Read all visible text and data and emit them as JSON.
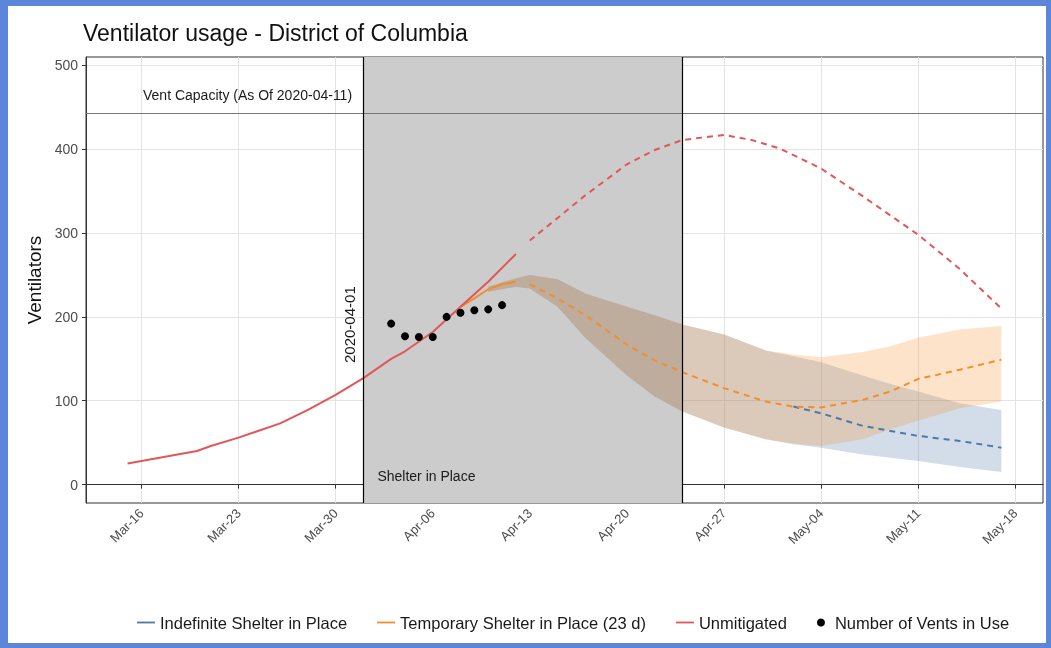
{
  "chart_data": {
    "type": "line",
    "title": "Ventilator usage - District of Columbia",
    "ylabel": "Ventilators",
    "xlim": [
      "2020-03-12",
      "2020-05-20"
    ],
    "xticks": [
      {
        "value": "2020-03-16",
        "label": "Mar-16"
      },
      {
        "value": "2020-03-23",
        "label": "Mar-23"
      },
      {
        "value": "2020-03-30",
        "label": "Mar-30"
      },
      {
        "value": "2020-04-06",
        "label": "Apr-06"
      },
      {
        "value": "2020-04-13",
        "label": "Apr-13"
      },
      {
        "value": "2020-04-20",
        "label": "Apr-20"
      },
      {
        "value": "2020-04-27",
        "label": "Apr-27"
      },
      {
        "value": "2020-05-04",
        "label": "May-04"
      },
      {
        "value": "2020-05-11",
        "label": "May-11"
      },
      {
        "value": "2020-05-18",
        "label": "May-18"
      }
    ],
    "ylim": [
      -22,
      510
    ],
    "yticks": [
      0,
      100,
      200,
      300,
      400,
      500
    ],
    "grid": true,
    "legend": "bottom",
    "series": [
      {
        "name": "Indefinite Shelter in Place",
        "color": "#4e79a7",
        "line_style": "dashed",
        "x": [
          "2020-04-10",
          "2020-04-12",
          "2020-04-13",
          "2020-04-15",
          "2020-04-17",
          "2020-04-20",
          "2020-04-22",
          "2020-04-24",
          "2020-04-27",
          "2020-04-30",
          "2020-05-02",
          "2020-05-04",
          "2020-05-07",
          "2020-05-09",
          "2020-05-11",
          "2020-05-14",
          "2020-05-17"
        ],
        "values": [
          null,
          null,
          null,
          null,
          null,
          null,
          null,
          null,
          null,
          null,
          93,
          85,
          70,
          64,
          58,
          52,
          44
        ],
        "lower": [
          230,
          236,
          234,
          212,
          175,
          130,
          105,
          87,
          68,
          54,
          48,
          44,
          36,
          32,
          28,
          21,
          15
        ],
        "upper": [
          236,
          246,
          250,
          245,
          228,
          212,
          202,
          191,
          179,
          160,
          153,
          146,
          130,
          120,
          111,
          97,
          89
        ]
      },
      {
        "name": "Temporary Shelter in Place (23 d)",
        "color": "#f28e2b",
        "line_style": "solid",
        "x": [
          "2020-04-08",
          "2020-04-09",
          "2020-04-10",
          "2020-04-11",
          "2020-04-12"
        ],
        "values": [
          212,
          222,
          233,
          239,
          242
        ]
      },
      {
        "color": "#f28e2b",
        "line_style": "dashed",
        "x": [
          "2020-04-10",
          "2020-04-12",
          "2020-04-13",
          "2020-04-15",
          "2020-04-17",
          "2020-04-20",
          "2020-04-22",
          "2020-04-24",
          "2020-04-27",
          "2020-04-30",
          "2020-05-02",
          "2020-05-04",
          "2020-05-07",
          "2020-05-09",
          "2020-05-11",
          "2020-05-14",
          "2020-05-17"
        ],
        "values": [
          null,
          null,
          239,
          222,
          202,
          167,
          148,
          134,
          115,
          99,
          93,
          92,
          101,
          111,
          126,
          137,
          149
        ],
        "lower": [
          230,
          236,
          234,
          212,
          175,
          130,
          105,
          87,
          68,
          54,
          49,
          46,
          54,
          66,
          76,
          91,
          99
        ],
        "upper": [
          236,
          246,
          250,
          245,
          228,
          212,
          202,
          191,
          179,
          160,
          155,
          152,
          158,
          165,
          175,
          185,
          189
        ]
      },
      {
        "name": "Unmitigated",
        "color": "#e15759",
        "line_style": "solid",
        "x": [
          "2020-03-15",
          "2020-03-16",
          "2020-03-18",
          "2020-03-20",
          "2020-03-21",
          "2020-03-23",
          "2020-03-26",
          "2020-03-28",
          "2020-03-30",
          "2020-04-01",
          "2020-04-03",
          "2020-04-04",
          "2020-04-06",
          "2020-04-08",
          "2020-04-10",
          "2020-04-12"
        ],
        "values": [
          25,
          28,
          34,
          40,
          46,
          56,
          73,
          89,
          107,
          127,
          150,
          159,
          182,
          212,
          242,
          275
        ]
      },
      {
        "color": "#e15759",
        "line_style": "dashed",
        "x": [
          "2020-04-13",
          "2020-04-15",
          "2020-04-17",
          "2020-04-20",
          "2020-04-22",
          "2020-04-24",
          "2020-04-27",
          "2020-04-29",
          "2020-05-01",
          "2020-05-04",
          "2020-05-07",
          "2020-05-11",
          "2020-05-14",
          "2020-05-17"
        ],
        "values": [
          291,
          318,
          345,
          382,
          399,
          411,
          417,
          411,
          401,
          377,
          344,
          298,
          257,
          210
        ]
      },
      {
        "name": "Number of Vents in Use",
        "type": "scatter",
        "marker": "circle",
        "color": "#000000",
        "x": [
          "2020-04-03",
          "2020-04-04",
          "2020-04-05",
          "2020-04-06",
          "2020-04-07",
          "2020-04-08",
          "2020-04-09",
          "2020-04-10",
          "2020-04-11"
        ],
        "values": [
          192,
          177,
          176,
          176,
          200,
          205,
          208,
          209,
          214
        ]
      }
    ],
    "ref_lines": [
      {
        "axis": "y",
        "value": 443,
        "label": "Vent Capacity (As Of 2020-04-11)",
        "color": "#777777"
      },
      {
        "axis": "x",
        "value": "2020-04-01",
        "label": "2020-04-01",
        "color": "#000000"
      },
      {
        "axis": "x",
        "value": "2020-04-24",
        "color": "#000000"
      }
    ],
    "bands": [
      {
        "axis": "x",
        "from": "2020-04-01",
        "to": "2020-04-24",
        "label": "Shelter in Place",
        "color": "#cccccc"
      }
    ]
  }
}
